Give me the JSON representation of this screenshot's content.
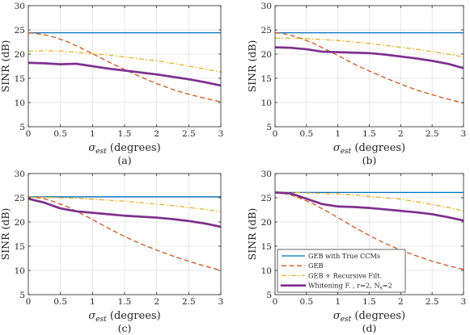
{
  "chart_data": [
    {
      "type": "line",
      "panel_label": "(a)",
      "xlabel_main": "σ",
      "xlabel_sub": "est",
      "xlabel_rest": " (degrees)",
      "ylabel": "SINR (dB)",
      "xlim": [
        0,
        3
      ],
      "ylim": [
        5,
        30
      ],
      "xticks": [
        "0",
        "0.5",
        "1",
        "1.5",
        "2",
        "2.5",
        "3"
      ],
      "yticks": [
        "5",
        "10",
        "15",
        "20",
        "25",
        "30"
      ],
      "grid": true,
      "series": [
        {
          "name": "GEB with True CCMs",
          "color": "#0072BD",
          "style": "solid",
          "x": [
            0,
            0.5,
            1,
            1.5,
            2,
            2.5,
            3
          ],
          "y": [
            24.4,
            24.4,
            24.4,
            24.4,
            24.4,
            24.4,
            24.4
          ]
        },
        {
          "name": "GEB",
          "color": "#D95319",
          "style": "dashed",
          "x": [
            0,
            0.1,
            0.25,
            0.4,
            0.6,
            0.8,
            1,
            1.25,
            1.5,
            1.75,
            2,
            2.25,
            2.5,
            2.75,
            3
          ],
          "y": [
            24.4,
            24.3,
            24,
            23.5,
            22.6,
            21.4,
            20.1,
            18.4,
            16.8,
            15.3,
            13.9,
            12.7,
            11.7,
            10.9,
            10.1
          ]
        },
        {
          "name": "GEB + Recursive Filt.",
          "color": "#EDB120",
          "style": "dashdot",
          "x": [
            0,
            0.25,
            0.5,
            0.75,
            1,
            1.25,
            1.5,
            1.75,
            2,
            2.25,
            2.5,
            2.75,
            3
          ],
          "y": [
            20.6,
            20.7,
            20.6,
            20.4,
            20.1,
            19.8,
            19.4,
            19,
            18.6,
            18.1,
            17.5,
            16.9,
            16.3
          ]
        },
        {
          "name": "Whitening F. , r=2, N_s=2",
          "color": "#7E2F8E",
          "style": "dotted",
          "x": [
            0,
            0.25,
            0.5,
            0.75,
            1,
            1.25,
            1.5,
            1.75,
            2,
            2.25,
            2.5,
            2.75,
            3
          ],
          "y": [
            18.2,
            18.1,
            17.9,
            18,
            17.5,
            17,
            16.6,
            16.2,
            15.8,
            15.3,
            14.8,
            14.2,
            13.5
          ]
        }
      ]
    },
    {
      "type": "line",
      "panel_label": "(b)",
      "xlabel_main": "σ",
      "xlabel_sub": "est",
      "xlabel_rest": " (degrees)",
      "ylabel": "SINR (dB)",
      "xlim": [
        0,
        3
      ],
      "ylim": [
        5,
        30
      ],
      "xticks": [
        "0",
        "0.5",
        "1",
        "1.5",
        "2",
        "2.5",
        "3"
      ],
      "yticks": [
        "5",
        "10",
        "15",
        "20",
        "25",
        "30"
      ],
      "grid": true,
      "series": [
        {
          "name": "GEB with True CCMs",
          "color": "#0072BD",
          "style": "solid",
          "x": [
            0,
            0.5,
            1,
            1.5,
            2,
            2.5,
            3
          ],
          "y": [
            24.4,
            24.4,
            24.4,
            24.4,
            24.4,
            24.4,
            24.4
          ]
        },
        {
          "name": "GEB",
          "color": "#D95319",
          "style": "dashed",
          "x": [
            0,
            0.1,
            0.25,
            0.4,
            0.6,
            0.8,
            1,
            1.25,
            1.5,
            1.75,
            2,
            2.25,
            2.5,
            2.75,
            3
          ],
          "y": [
            24.4,
            24.3,
            23.9,
            23.3,
            22.3,
            21,
            19.7,
            18,
            16.5,
            15.1,
            13.8,
            12.6,
            11.6,
            10.7,
            9.9
          ]
        },
        {
          "name": "GEB + Recursive Filt.",
          "color": "#EDB120",
          "style": "dashdot",
          "x": [
            0,
            0.25,
            0.5,
            0.75,
            1,
            1.25,
            1.5,
            1.75,
            2,
            2.25,
            2.5,
            2.75,
            3
          ],
          "y": [
            23.3,
            23.3,
            23.2,
            23,
            22.8,
            22.5,
            22.2,
            21.8,
            21.4,
            21,
            20.5,
            20,
            19.4
          ]
        },
        {
          "name": "Whitening F. , r=2, N_s=2",
          "color": "#7E2F8E",
          "style": "dotted",
          "x": [
            0,
            0.25,
            0.5,
            0.75,
            1,
            1.25,
            1.5,
            1.75,
            2,
            2.25,
            2.5,
            2.75,
            3
          ],
          "y": [
            21.4,
            21.3,
            21,
            20.5,
            20.4,
            20.3,
            20.2,
            19.9,
            19.5,
            19.1,
            18.6,
            18,
            17.1
          ]
        }
      ]
    },
    {
      "type": "line",
      "panel_label": "(c)",
      "xlabel_main": "σ",
      "xlabel_sub": "est",
      "xlabel_rest": " (degrees)",
      "ylabel": "SINR (dB)",
      "xlim": [
        0,
        3
      ],
      "ylim": [
        5,
        30
      ],
      "xticks": [
        "0",
        "0.5",
        "1",
        "1.5",
        "2",
        "2.5",
        "3"
      ],
      "yticks": [
        "5",
        "10",
        "15",
        "20",
        "25",
        "30"
      ],
      "grid": true,
      "series": [
        {
          "name": "GEB with True CCMs",
          "color": "#0072BD",
          "style": "solid",
          "x": [
            0,
            0.5,
            1,
            1.5,
            2,
            2.5,
            3
          ],
          "y": [
            25.2,
            25.2,
            25.2,
            25.2,
            25.2,
            25.2,
            25.2
          ]
        },
        {
          "name": "GEB",
          "color": "#D95319",
          "style": "dashed",
          "x": [
            0,
            0.1,
            0.25,
            0.4,
            0.6,
            0.8,
            1,
            1.25,
            1.5,
            1.75,
            2,
            2.25,
            2.5,
            2.75,
            3
          ],
          "y": [
            25.2,
            25.1,
            24.8,
            24.2,
            23.2,
            21.9,
            20.5,
            18.7,
            17,
            15.5,
            14.2,
            13,
            11.9,
            10.9,
            10
          ]
        },
        {
          "name": "GEB + Recursive Filt.",
          "color": "#EDB120",
          "style": "dashdot",
          "x": [
            0,
            0.25,
            0.5,
            0.75,
            1,
            1.25,
            1.5,
            1.75,
            2,
            2.25,
            2.5,
            2.75,
            3
          ],
          "y": [
            25.1,
            25.1,
            25,
            24.9,
            24.7,
            24.5,
            24.3,
            24,
            23.7,
            23.4,
            23,
            22.6,
            22.1
          ]
        },
        {
          "name": "Whitening F. , r=2, N_s=2",
          "color": "#7E2F8E",
          "style": "dotted",
          "x": [
            0,
            0.25,
            0.5,
            0.75,
            1,
            1.25,
            1.5,
            1.75,
            2,
            2.25,
            2.5,
            2.75,
            3
          ],
          "y": [
            24.8,
            24,
            22.8,
            22.2,
            21.9,
            21.6,
            21.3,
            21.1,
            20.9,
            20.6,
            20.2,
            19.7,
            19
          ]
        }
      ]
    },
    {
      "type": "line",
      "panel_label": "(d)",
      "xlabel_main": "σ",
      "xlabel_sub": "est",
      "xlabel_rest": " (degrees)",
      "ylabel": "SINR (dB)",
      "xlim": [
        0,
        3
      ],
      "ylim": [
        5,
        30
      ],
      "xticks": [
        "0",
        "0.5",
        "1",
        "1.5",
        "2",
        "2.5",
        "3"
      ],
      "yticks": [
        "5",
        "10",
        "15",
        "20",
        "25",
        "30"
      ],
      "grid": true,
      "legend_position": "bottom-left",
      "series": [
        {
          "name": "GEB with True CCMs",
          "color": "#0072BD",
          "style": "solid",
          "x": [
            0,
            0.5,
            1,
            1.5,
            2,
            2.5,
            3
          ],
          "y": [
            26.1,
            26.1,
            26.1,
            26.1,
            26.1,
            26.1,
            26.1
          ]
        },
        {
          "name": "GEB",
          "color": "#D95319",
          "style": "dashed",
          "x": [
            0,
            0.1,
            0.25,
            0.4,
            0.6,
            0.8,
            1,
            1.25,
            1.5,
            1.75,
            2,
            2.25,
            2.5,
            2.75,
            3
          ],
          "y": [
            26.1,
            26,
            25.6,
            24.9,
            23.8,
            22.4,
            20.9,
            19,
            17.2,
            15.6,
            14.2,
            13,
            11.9,
            11,
            10.2
          ]
        },
        {
          "name": "GEB + Recursive Filt.",
          "color": "#EDB120",
          "style": "dashdot",
          "x": [
            0,
            0.25,
            0.5,
            0.75,
            1,
            1.25,
            1.5,
            1.75,
            2,
            2.25,
            2.5,
            2.75,
            3
          ],
          "y": [
            26.1,
            26.1,
            26,
            25.9,
            25.8,
            25.6,
            25.3,
            25,
            24.7,
            24.2,
            23.6,
            23,
            22.3
          ]
        },
        {
          "name": "Whitening F. , r=2, N_s=2",
          "color": "#7E2F8E",
          "style": "dotted",
          "x": [
            0,
            0.25,
            0.5,
            0.75,
            1,
            1.25,
            1.5,
            1.75,
            2,
            2.25,
            2.5,
            2.75,
            3
          ],
          "y": [
            26.1,
            25.9,
            24.8,
            23.7,
            23.2,
            23.1,
            22.9,
            22.6,
            22.3,
            22,
            21.6,
            21,
            20.3
          ]
        }
      ]
    }
  ],
  "legend": {
    "entries": [
      {
        "main": "GEB with True CCMs",
        "sub": "",
        "tail": "",
        "color": "#0072BD",
        "style": "solid"
      },
      {
        "main": "GEB",
        "sub": "",
        "tail": "",
        "color": "#D95319",
        "style": "dashed"
      },
      {
        "main": "GEB + Recursive Filt.",
        "sub": "",
        "tail": "",
        "color": "#EDB120",
        "style": "dashdot"
      },
      {
        "main": "Whitening F. , r=2, N",
        "sub": "s",
        "tail": "=2",
        "color": "#7E2F8E",
        "style": "dotted"
      }
    ]
  }
}
